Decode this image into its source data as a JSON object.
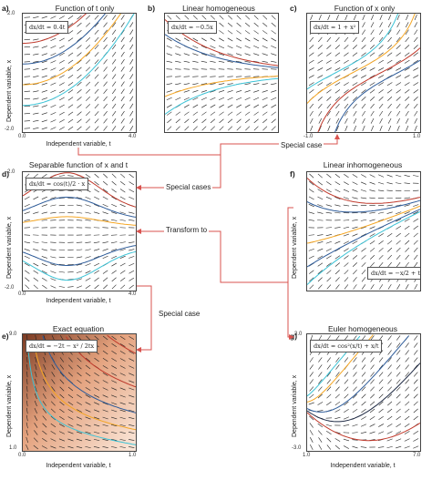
{
  "panels": {
    "a": {
      "label": "a)",
      "title": "Function of t only",
      "eq": "dx/dt = 0.4t",
      "ytop": "2.0",
      "ybot": "-2.0",
      "xleft": "0.0",
      "xright": "4.0"
    },
    "b": {
      "label": "b)",
      "title": "Linear homogeneous",
      "eq": "dx/dt = −0.5x"
    },
    "c": {
      "label": "c)",
      "title": "Function of x only",
      "eq": "dx/dt = 1 + x²",
      "xleft": "-1.0",
      "xright": "1.0"
    },
    "d": {
      "label": "d)",
      "title": "Separable function of x and t",
      "eq": "dx/dt = cos(t)/2 · x",
      "ytop": "2.0",
      "ybot": "-2.0",
      "xleft": "0.0",
      "xright": "4.0"
    },
    "e": {
      "label": "e)",
      "title": "Exact equation",
      "eq": "dx/dt = −2t − x² / 2tx",
      "ytop": "9.0",
      "ybot": "1.0",
      "xleft": "0.0",
      "xright": "1.0"
    },
    "f": {
      "label": "f)",
      "title": "Linear inhomogeneous",
      "eq": "dx/dt = −x/2 + t/5"
    },
    "g": {
      "label": "g)",
      "title": "Euler homogeneous",
      "eq": "dx/dt = cos²(x/t) + x/t",
      "ytop": "3.0",
      "ybot": "-3.0",
      "xleft": "1.0",
      "xright": "7.0"
    }
  },
  "axis": {
    "xlabel": "Independent variable, t",
    "ylabel": "Dependent variable, x"
  },
  "arrows": {
    "special_case": "Special case",
    "special_cases": "Special cases",
    "transform_to": "Transform to",
    "special_case_2": "Special case"
  },
  "colors": {
    "red": "#c0392b",
    "blue": "#2e5c9a",
    "orange": "#f5a623",
    "cyan": "#3cc3d6",
    "dark": "#1f2a44",
    "arrow": "#d9534f"
  }
}
